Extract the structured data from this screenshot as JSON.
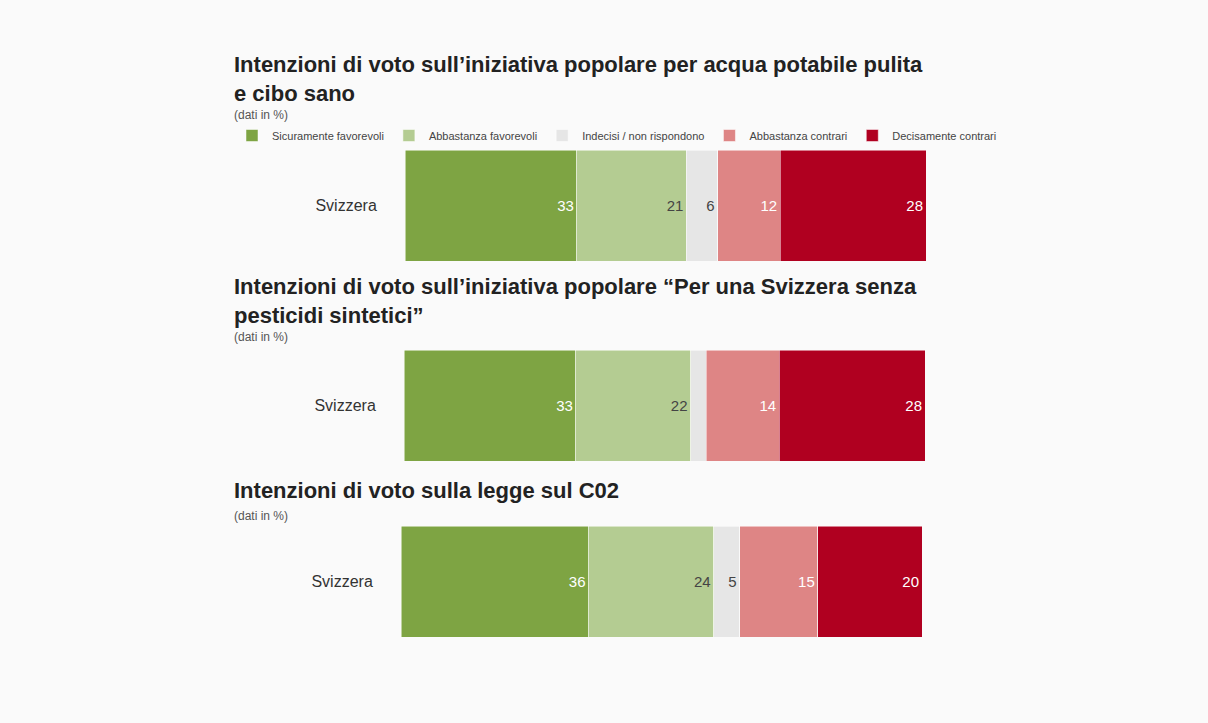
{
  "chart_data": [
    {
      "type": "bar",
      "title": "Intenzioni di voto sull’iniziativa popolare per acqua potabile pulita e cibo sano",
      "subtitle": "(dati in %)",
      "categories": [
        "Svizzera"
      ],
      "orientation": "horizontal",
      "stacked": true,
      "data_labels": true,
      "tick_labels": "y",
      "legend": "top left",
      "xlim": [
        0,
        100
      ],
      "series": [
        {
          "name": "Sicuramente favorevoli",
          "color": "#7ea443",
          "values": [
            33
          ]
        },
        {
          "name": "Abbastanza favorevoli",
          "color": "#b4cc92",
          "values": [
            21
          ]
        },
        {
          "name": "Indecisi / non rispondono",
          "color": "#e6e6e6",
          "values": [
            6
          ]
        },
        {
          "name": "Abbastanza contrari",
          "color": "#de8585",
          "values": [
            12
          ]
        },
        {
          "name": "Decisamente contrari",
          "color": "#b00020",
          "values": [
            28
          ]
        }
      ]
    },
    {
      "type": "bar",
      "title": "Intenzioni di voto sull’iniziativa popolare “Per una Svizzera senza pesticidi sintetici”",
      "subtitle": "(dati in %)",
      "categories": [
        "Svizzera"
      ],
      "orientation": "horizontal",
      "stacked": true,
      "data_labels": true,
      "tick_labels": "y",
      "legend": false,
      "xlim": [
        0,
        100
      ],
      "series": [
        {
          "name": "Sicuramente favorevoli",
          "color": "#7ea443",
          "values": [
            33
          ]
        },
        {
          "name": "Abbastanza favorevoli",
          "color": "#b4cc92",
          "values": [
            22
          ]
        },
        {
          "name": "Indecisi / non rispondono",
          "color": "#e6e6e6",
          "values": [
            3
          ],
          "value_labels": [
            null
          ]
        },
        {
          "name": "Abbastanza contrari",
          "color": "#de8585",
          "values": [
            14
          ]
        },
        {
          "name": "Decisamente contrari",
          "color": "#b00020",
          "values": [
            28
          ]
        }
      ]
    },
    {
      "type": "bar",
      "title": "Intenzioni di voto sulla legge sul C02",
      "subtitle": "(dati in %)",
      "categories": [
        "Svizzera"
      ],
      "orientation": "horizontal",
      "stacked": true,
      "data_labels": true,
      "tick_labels": "y",
      "legend": false,
      "xlim": [
        0,
        100
      ],
      "series": [
        {
          "name": "Sicuramente favorevoli",
          "color": "#7ea443",
          "values": [
            36
          ]
        },
        {
          "name": "Abbastanza favorevoli",
          "color": "#b4cc92",
          "values": [
            24
          ]
        },
        {
          "name": "Indecisi / non rispondono",
          "color": "#e6e6e6",
          "values": [
            5
          ]
        },
        {
          "name": "Abbastanza contrari",
          "color": "#de8585",
          "values": [
            15
          ]
        },
        {
          "name": "Decisamente contrari",
          "color": "#b00020",
          "values": [
            20
          ]
        }
      ]
    }
  ]
}
